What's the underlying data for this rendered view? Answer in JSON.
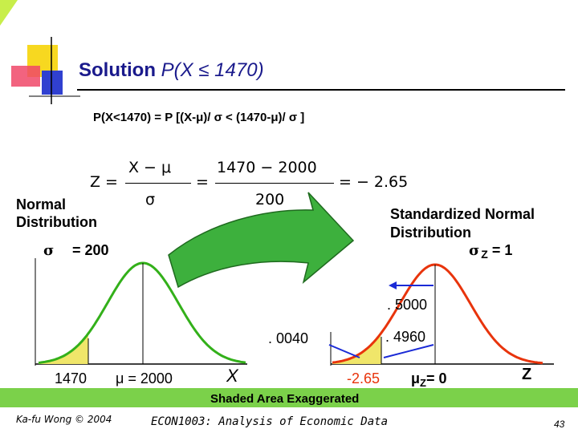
{
  "slide": {
    "title_prefix": "Solution ",
    "title_expr": "P(X ≤ 1470)",
    "prob_equation": "P(X<1470) = P [(X-μ)/ σ < (1470-μ)/ σ ]"
  },
  "formula": {
    "z": "Z =",
    "num1": "X − μ",
    "den1": "σ",
    "eq2": "=",
    "num2": "1470  − 2000",
    "den2": "200",
    "result": "= − 2.65"
  },
  "left_dist": {
    "label": "Normal Distribution",
    "sigma_symbol": "σ",
    "sigma_value": "= 200",
    "x_value": "1470",
    "mu_label": "μ  = 2000",
    "x_axis": "X"
  },
  "right_dist": {
    "label": "Standardized Normal Distribution",
    "sigma_symbol": "σ",
    "sigma_sub": "Z",
    "sigma_value": "= 1",
    "half_area": ". 5000",
    "area_between": ". 4960",
    "tail_area": ". 0040",
    "z_value": "-2.65",
    "mu_symbol": "μ",
    "mu_sub": "Z",
    "mu_value": "= 0",
    "z_axis": "Z"
  },
  "banner": {
    "text": "Shaded Area Exaggerated"
  },
  "footer": {
    "author": "Ka-fu Wong © 2004",
    "course": "ECON1003: Analysis of Economic Data",
    "page": "43"
  },
  "colors": {
    "title": "#1a1a8c",
    "curve": "#e8340c",
    "left_curve": "#33b01a",
    "shade": "#f0e66a",
    "banner": "#7bd14a",
    "arrow": "#3db03d",
    "marker": "#1a2ad6"
  }
}
